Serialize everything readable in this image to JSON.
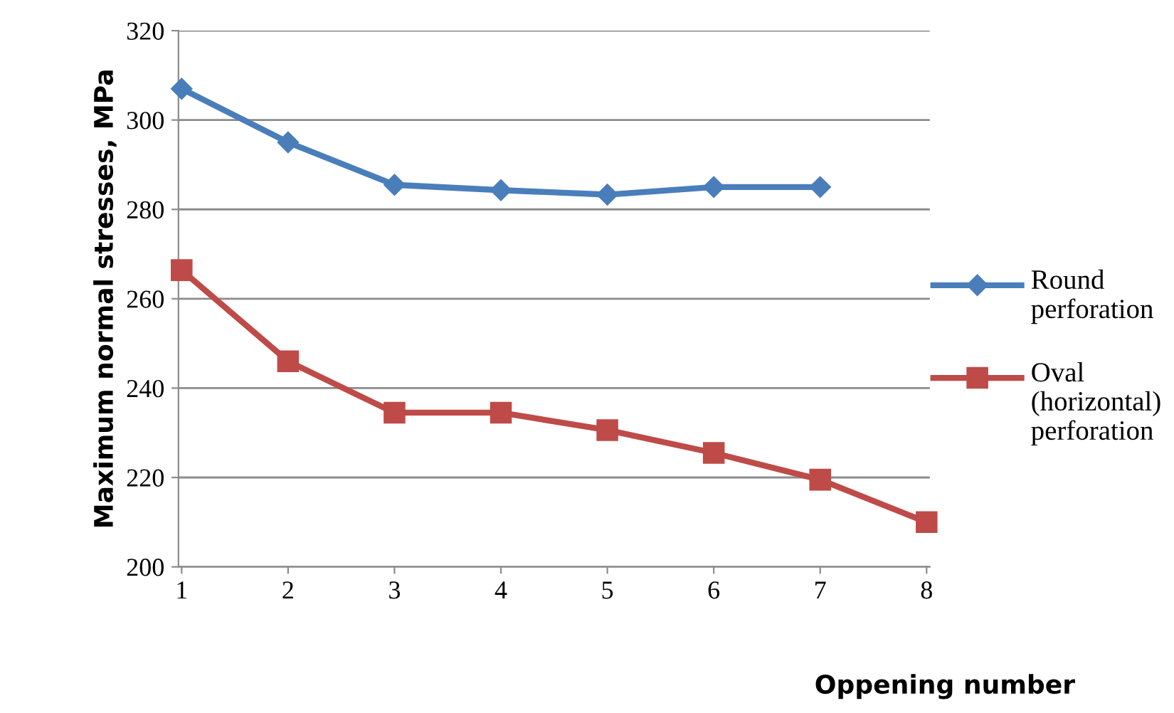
{
  "chart_data": {
    "type": "line",
    "xlabel": "Oppening number",
    "ylabel": "Maximum normal stresses, MPa",
    "categories": [
      "1",
      "2",
      "3",
      "4",
      "5",
      "6",
      "7",
      "8"
    ],
    "series": [
      {
        "name": "Round perforation",
        "color": "#4a7ebb",
        "marker": "diamond",
        "values": [
          307,
          295,
          285.5,
          284.3,
          283.3,
          285,
          285,
          null
        ]
      },
      {
        "name": "Oval (horizontal) perforation",
        "color": "#be4b48",
        "marker": "square",
        "values": [
          266.4,
          246,
          234.5,
          234.5,
          230.6,
          225.5,
          219.5,
          210
        ]
      }
    ],
    "ylim": [
      200,
      320
    ],
    "yticks": [
      200,
      220,
      240,
      260,
      280,
      300,
      320
    ],
    "grid": "y",
    "legend": "right"
  }
}
